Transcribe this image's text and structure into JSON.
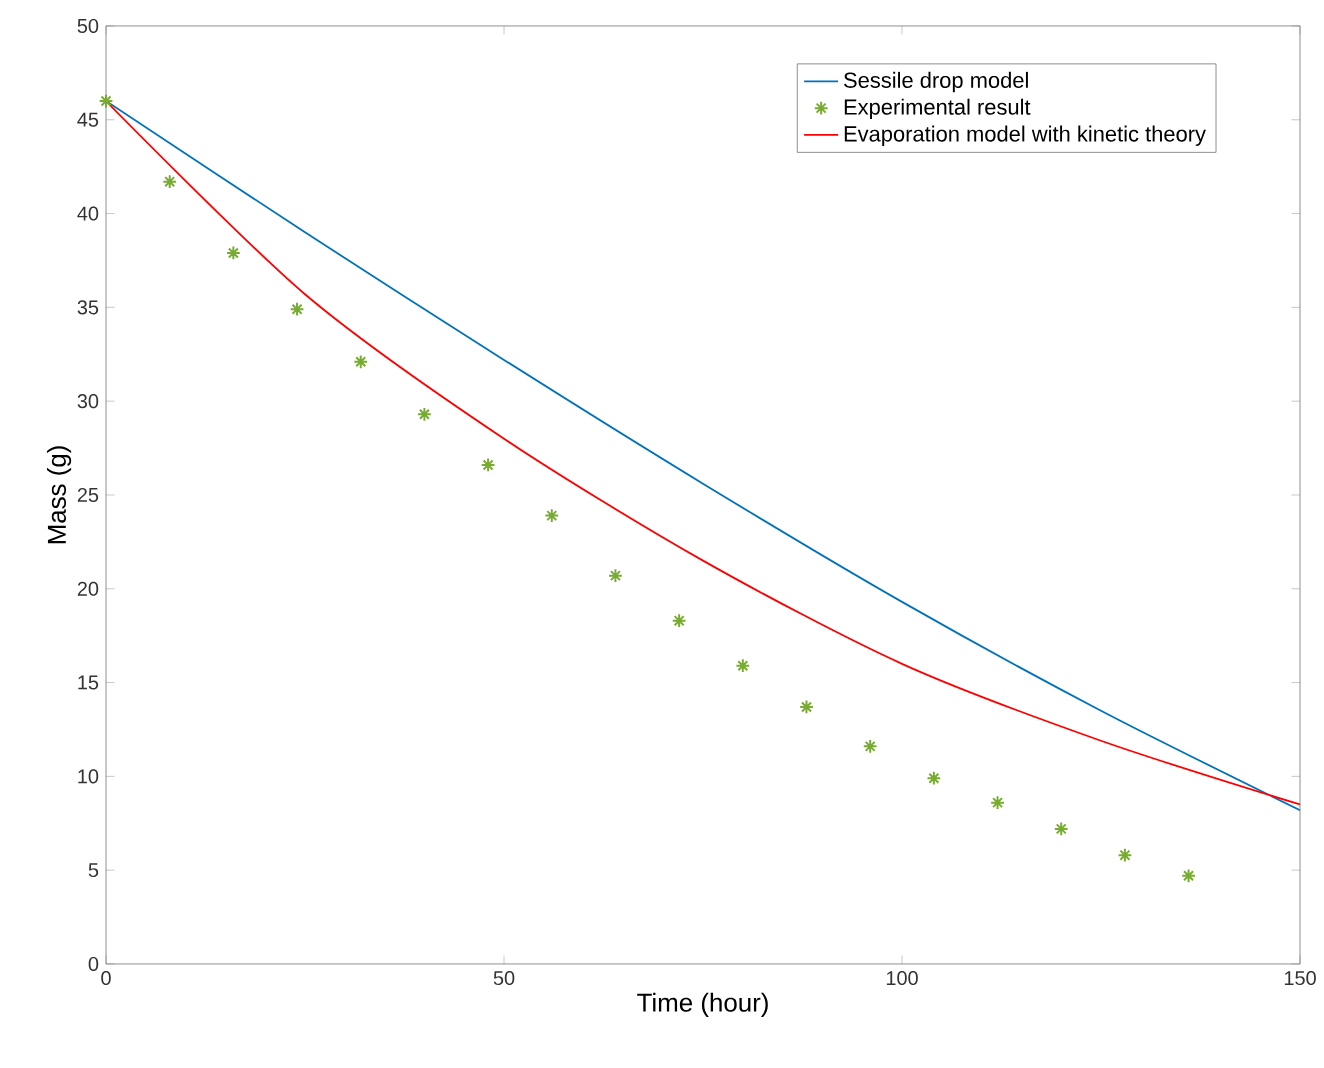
{
  "chart_data": {
    "type": "line",
    "xlabel": "Time (hour)",
    "ylabel": "Mass (g)",
    "xlim": [
      0,
      150
    ],
    "ylim": [
      0,
      50
    ],
    "xticks": [
      0,
      50,
      100,
      150
    ],
    "yticks": [
      0,
      5,
      10,
      15,
      20,
      25,
      30,
      35,
      40,
      45,
      50
    ],
    "legend": "top right",
    "grid": false,
    "series": [
      {
        "name": "Sessile drop model",
        "color": "#0072bd",
        "marker": "none",
        "x": [
          0,
          25,
          50,
          75,
          100,
          125,
          150
        ],
        "values": [
          46.0,
          39.0,
          32.2,
          25.6,
          19.3,
          13.5,
          8.2
        ]
      },
      {
        "name": "Experimental result",
        "type": "scatter",
        "color": "#77ac30",
        "marker": "cross",
        "x": [
          0,
          8,
          16,
          24,
          32,
          40,
          48,
          56,
          64,
          72,
          80,
          88,
          96,
          104,
          112,
          120,
          128,
          136
        ],
        "values": [
          46.0,
          41.7,
          37.9,
          34.9,
          32.1,
          29.3,
          26.6,
          23.9,
          20.7,
          18.3,
          15.9,
          13.7,
          11.6,
          9.9,
          8.6,
          7.2,
          5.8,
          4.7
        ]
      },
      {
        "name": "Evaporation model with kinetic theory",
        "color": "#ff0000",
        "marker": "none",
        "x": [
          0,
          25,
          50,
          75,
          100,
          125,
          150
        ],
        "values": [
          46.0,
          35.7,
          28.0,
          21.5,
          16.0,
          11.9,
          8.5
        ]
      }
    ]
  }
}
